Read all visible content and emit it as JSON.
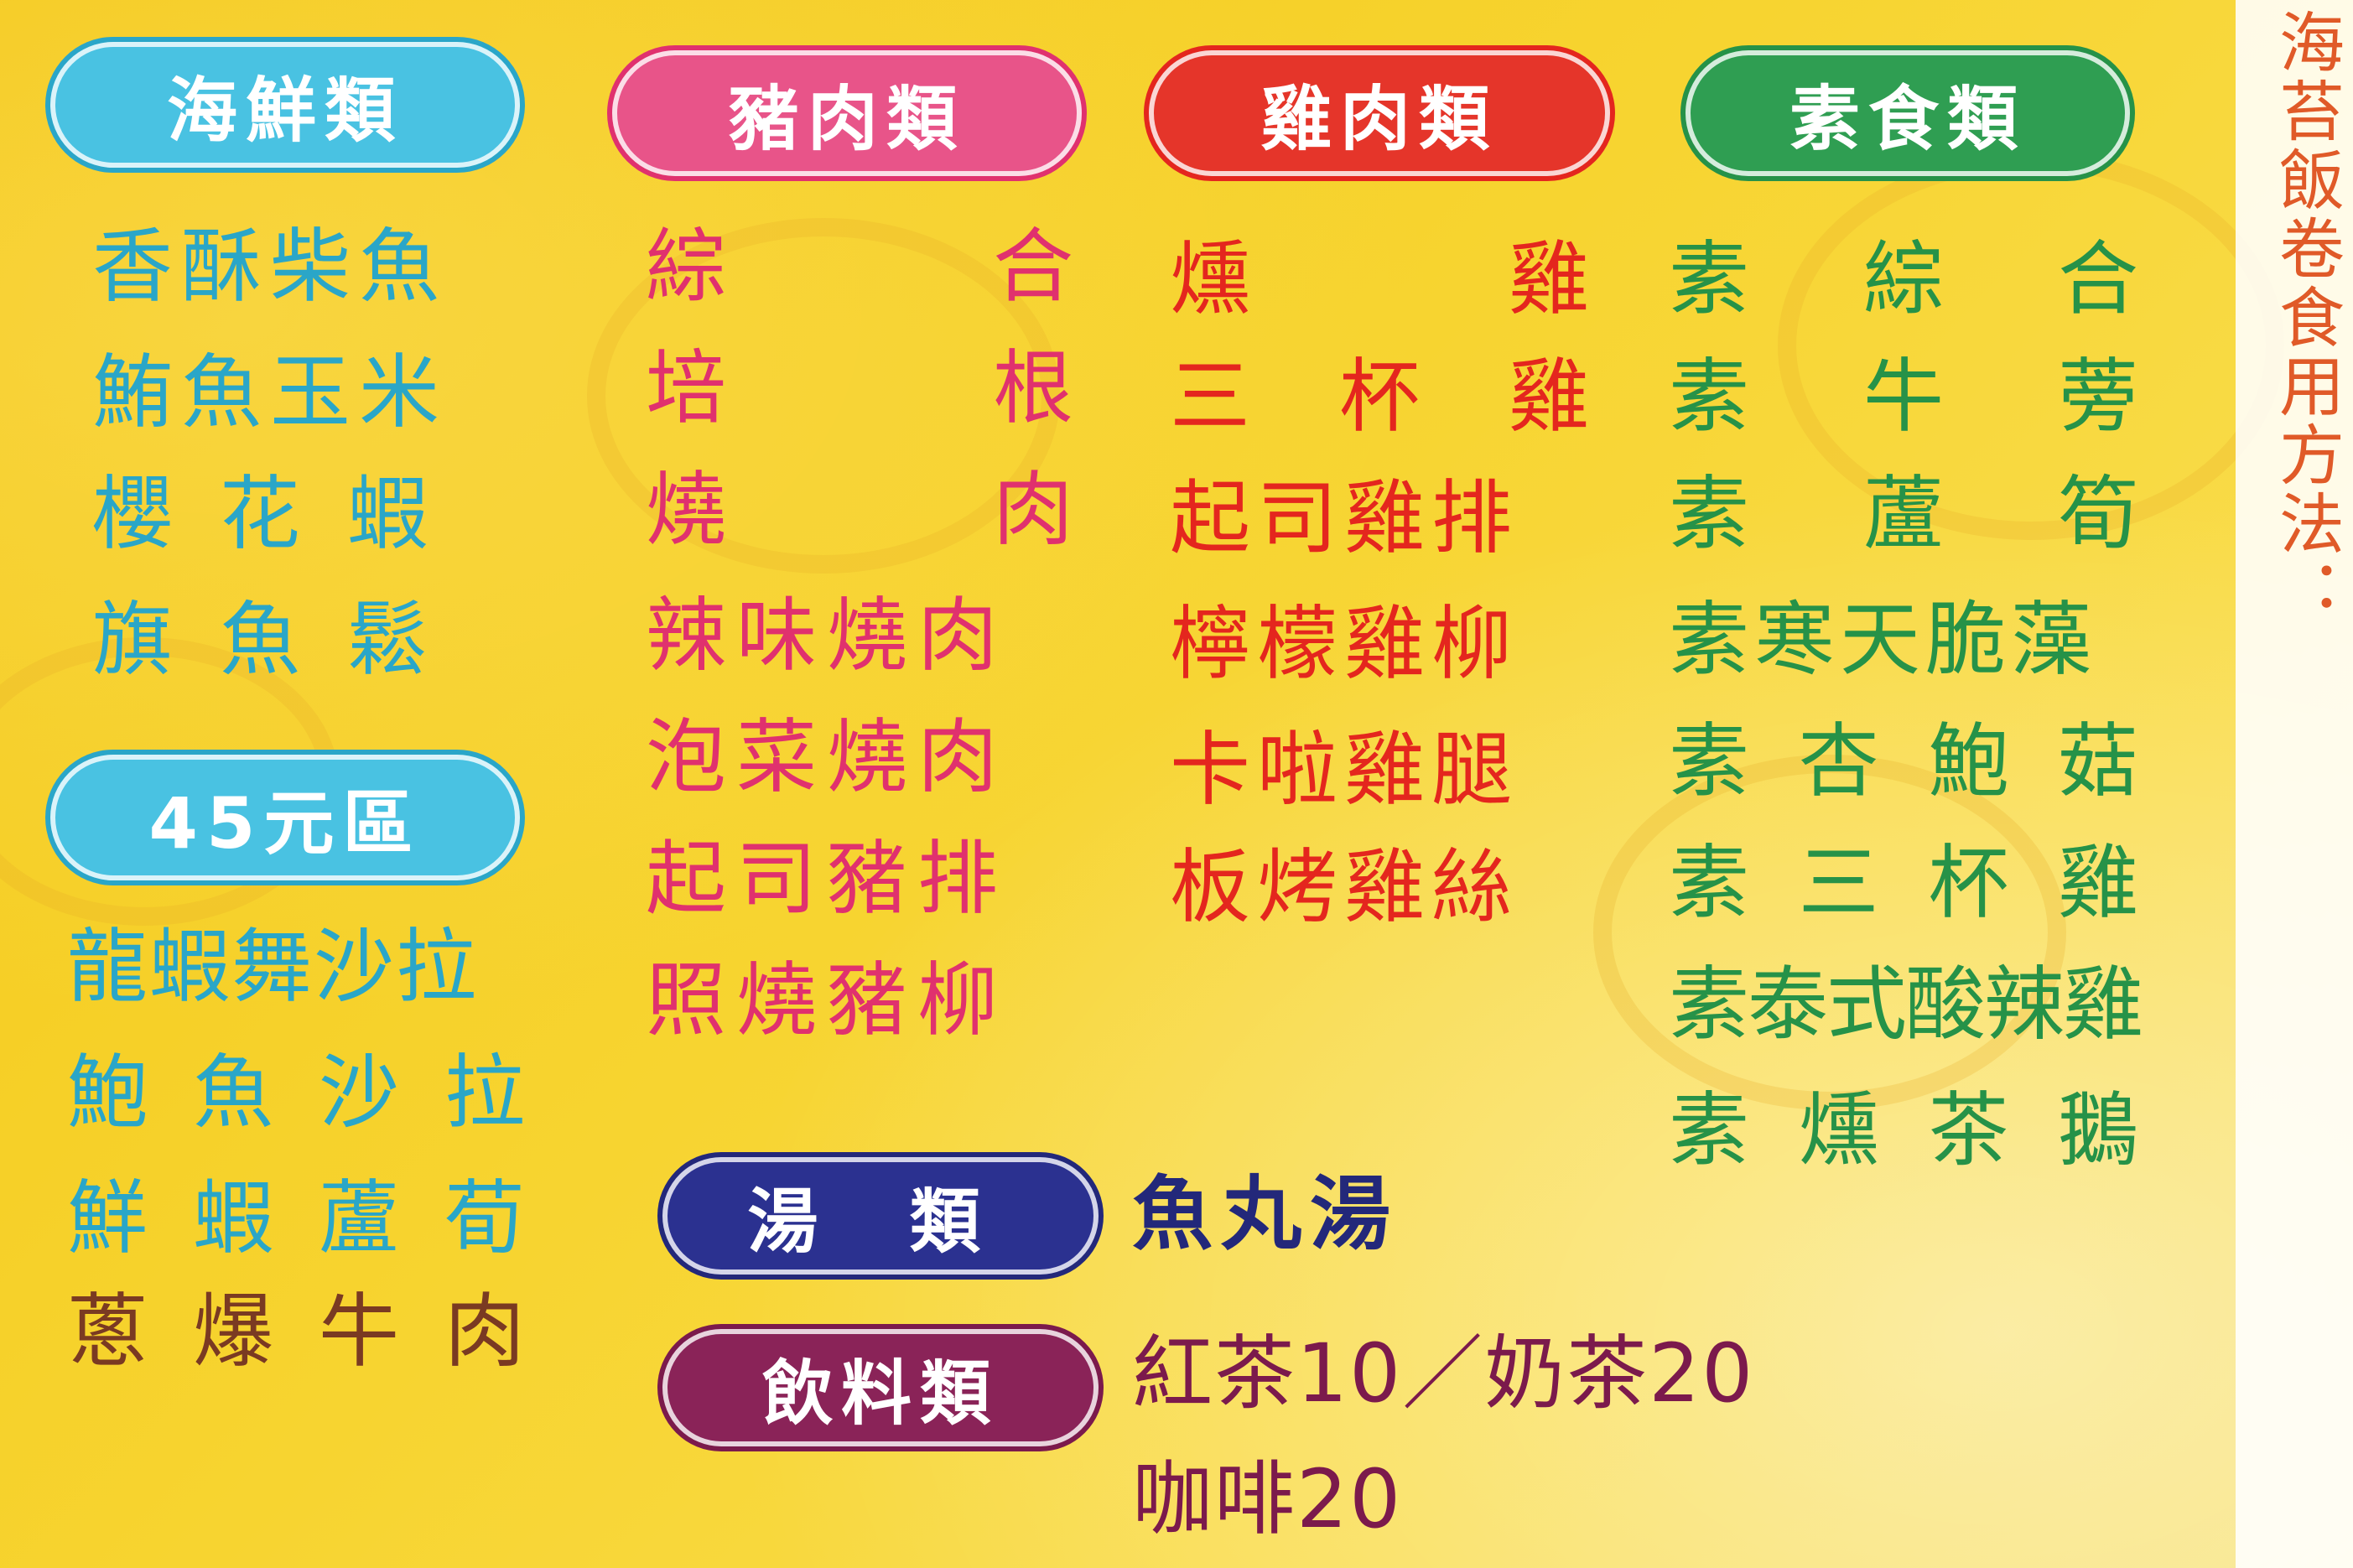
{
  "colors": {
    "seafood": "#2aa6c8",
    "pork": "#e0316e",
    "chicken": "#e4261e",
    "veg": "#269248",
    "beef": "#7a3a22",
    "soup": "#23287a",
    "drinks": "#7b1a4c"
  },
  "seafood": {
    "header": "海鮮類",
    "items": [
      "香酥柴魚",
      "鮪魚玉米",
      "櫻花蝦",
      "旗魚鬆"
    ]
  },
  "zone45": {
    "header": "45元區",
    "items": [
      "龍蝦舞沙拉",
      "鮑魚沙拉",
      "鮮蝦蘆荀",
      "蔥爆牛肉"
    ]
  },
  "pork": {
    "header": "豬肉類",
    "items": [
      "綜合",
      "培根",
      "燒肉",
      "辣味燒肉",
      "泡菜燒肉",
      "起司豬排",
      "照燒豬柳"
    ]
  },
  "chicken": {
    "header": "雞肉類",
    "items": [
      "燻雞",
      "三杯雞",
      "起司雞排",
      "檸檬雞柳",
      "卡啦雞腿",
      "板烤雞絲"
    ]
  },
  "veg": {
    "header": "素食類",
    "items": [
      "素綜合",
      "素牛蒡",
      "素蘆筍",
      "素寒天脆藻",
      "素杏鮑菇",
      "素三杯雞",
      "素泰式酸辣雞",
      "素燻茶鵝"
    ]
  },
  "soup": {
    "header": "湯 類",
    "item": "魚丸湯"
  },
  "drinks": {
    "header": "飲料類",
    "line1": "紅茶10／奶茶20",
    "line2": "咖啡20"
  },
  "side_note": "海苔飯卷食用方法："
}
